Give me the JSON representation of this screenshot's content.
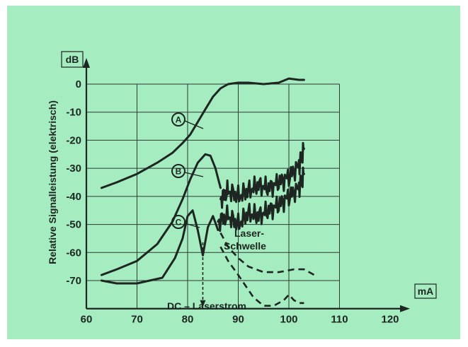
{
  "chart_data": {
    "type": "line",
    "xlabel": "DC – Laserstrom",
    "ylabel": "Relative Signalleistung (elektrisch)",
    "x_unit": "mA",
    "y_unit": "dB",
    "xlim": [
      60,
      120
    ],
    "ylim": [
      -80,
      5
    ],
    "x_ticks": [
      60,
      70,
      80,
      90,
      100,
      110,
      120
    ],
    "y_ticks": [
      0,
      -10,
      -20,
      -30,
      -40,
      -50,
      -60,
      -70
    ],
    "grid": true,
    "annotation": {
      "lines": [
        "Laser-",
        "Schwelle"
      ],
      "x": 83
    },
    "series": [
      {
        "name": "A",
        "x": [
          63,
          66,
          70,
          74,
          77,
          79,
          80.5,
          82,
          83.5,
          85,
          86.5,
          88,
          90,
          92,
          95,
          98,
          100,
          102,
          103
        ],
        "y": [
          -37,
          -35,
          -32,
          -28,
          -24.5,
          -21,
          -18,
          -13.5,
          -9,
          -4.5,
          -1.5,
          0,
          0.5,
          0.5,
          0,
          0.5,
          2,
          1.5,
          1.5
        ]
      },
      {
        "name": "B",
        "x": [
          63,
          66,
          70,
          74,
          77,
          79,
          80.5,
          82,
          83.5,
          84.5,
          85.5,
          86.5
        ],
        "y": [
          -68,
          -66,
          -63,
          -57,
          -49,
          -41,
          -34,
          -28,
          -25,
          -25.5,
          -30,
          -37
        ]
      },
      {
        "name": "B noisy",
        "x": [
          86.5,
          88,
          90,
          92,
          94,
          96,
          98,
          100,
          102,
          103
        ],
        "y": [
          -41,
          -38,
          -40,
          -38,
          -36,
          -37,
          -35,
          -33,
          -29,
          -23
        ]
      },
      {
        "name": "B dashed",
        "x": [
          86.5,
          88,
          90,
          92,
          95,
          98,
          101,
          103,
          105
        ],
        "y": [
          -53,
          -58,
          -62,
          -65,
          -67,
          -67,
          -66,
          -66,
          -68
        ]
      },
      {
        "name": "C",
        "x": [
          63,
          66,
          70,
          75,
          77.5,
          79,
          80,
          81,
          82,
          83,
          84,
          85,
          86
        ],
        "y": [
          -70,
          -71,
          -71,
          -69,
          -62,
          -55,
          -47,
          -45,
          -52,
          -61,
          -51,
          -47,
          -52
        ]
      },
      {
        "name": "C noisy",
        "x": [
          86,
          88,
          90,
          92,
          94,
          96,
          98,
          100,
          102,
          103
        ],
        "y": [
          -49,
          -47,
          -50,
          -46,
          -47,
          -45,
          -43,
          -40,
          -37,
          -32
        ]
      },
      {
        "name": "C dashed",
        "x": [
          86.5,
          88,
          90,
          91.5,
          93,
          95,
          97,
          99,
          100,
          101,
          102,
          103
        ],
        "y": [
          -58,
          -63,
          -68,
          -72,
          -76,
          -79,
          -79,
          -77,
          -75,
          -77,
          -78,
          -78
        ]
      }
    ]
  }
}
